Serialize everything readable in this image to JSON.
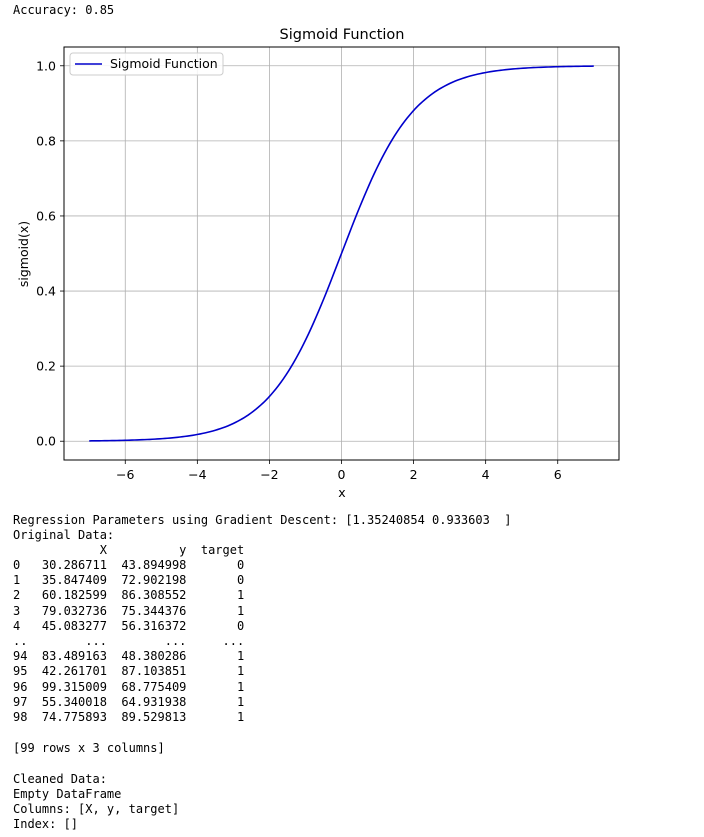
{
  "output": {
    "accuracy_line": "Accuracy: 0.85",
    "regression_line": "Regression Parameters using Gradient Descent: [1.35240854 0.933603  ]",
    "original_header": "Original Data:",
    "table": {
      "columns": [
        "X",
        "y",
        "target"
      ],
      "rows": [
        {
          "index": "0",
          "X": "30.286711",
          "y": "43.894998",
          "target": "0"
        },
        {
          "index": "1",
          "X": "35.847409",
          "y": "72.902198",
          "target": "0"
        },
        {
          "index": "2",
          "X": "60.182599",
          "y": "86.308552",
          "target": "1"
        },
        {
          "index": "3",
          "X": "79.032736",
          "y": "75.344376",
          "target": "1"
        },
        {
          "index": "4",
          "X": "45.083277",
          "y": "56.316372",
          "target": "0"
        },
        {
          "index": "..",
          "X": "...",
          "y": "...",
          "target": "..."
        },
        {
          "index": "94",
          "X": "83.489163",
          "y": "48.380286",
          "target": "1"
        },
        {
          "index": "95",
          "X": "42.261701",
          "y": "87.103851",
          "target": "1"
        },
        {
          "index": "96",
          "X": "99.315009",
          "y": "68.775409",
          "target": "1"
        },
        {
          "index": "97",
          "X": "55.340018",
          "y": "64.931938",
          "target": "1"
        },
        {
          "index": "98",
          "X": "74.775893",
          "y": "89.529813",
          "target": "1"
        }
      ],
      "shape_note": "[99 rows x 3 columns]"
    },
    "cleaned_header": "Cleaned Data:",
    "empty_line": "Empty DataFrame",
    "columns_line": "Columns: [X, y, target]",
    "index_line": "Index: []"
  },
  "chart_data": {
    "type": "line",
    "title": "Sigmoid Function",
    "xlabel": "x",
    "ylabel": "sigmoid(x)",
    "xlim": [
      -7.7,
      7.7
    ],
    "ylim": [
      -0.05,
      1.05
    ],
    "xticks": [
      -6,
      -4,
      -2,
      0,
      2,
      4,
      6
    ],
    "xtick_labels": [
      "−6",
      "−4",
      "−2",
      "0",
      "2",
      "4",
      "6"
    ],
    "yticks": [
      0.0,
      0.2,
      0.4,
      0.6,
      0.8,
      1.0
    ],
    "ytick_labels": [
      "0.0",
      "0.2",
      "0.4",
      "0.6",
      "0.8",
      "1.0"
    ],
    "grid": true,
    "legend_position": "top-left",
    "series": [
      {
        "name": "Sigmoid Function",
        "color": "#0000cc",
        "x": [
          -7,
          -6.5,
          -6,
          -5.5,
          -5,
          -4.5,
          -4,
          -3.5,
          -3,
          -2.5,
          -2,
          -1.5,
          -1,
          -0.5,
          0,
          0.5,
          1,
          1.5,
          2,
          2.5,
          3,
          3.5,
          4,
          4.5,
          5,
          5.5,
          6,
          6.5,
          7
        ],
        "y": [
          0.0009,
          0.0015,
          0.0025,
          0.0041,
          0.0067,
          0.011,
          0.018,
          0.0293,
          0.0474,
          0.0759,
          0.1192,
          0.1824,
          0.2689,
          0.3775,
          0.5,
          0.6225,
          0.7311,
          0.8176,
          0.8808,
          0.9241,
          0.9526,
          0.9707,
          0.982,
          0.989,
          0.9933,
          0.9959,
          0.9975,
          0.9985,
          0.9991
        ]
      }
    ]
  }
}
